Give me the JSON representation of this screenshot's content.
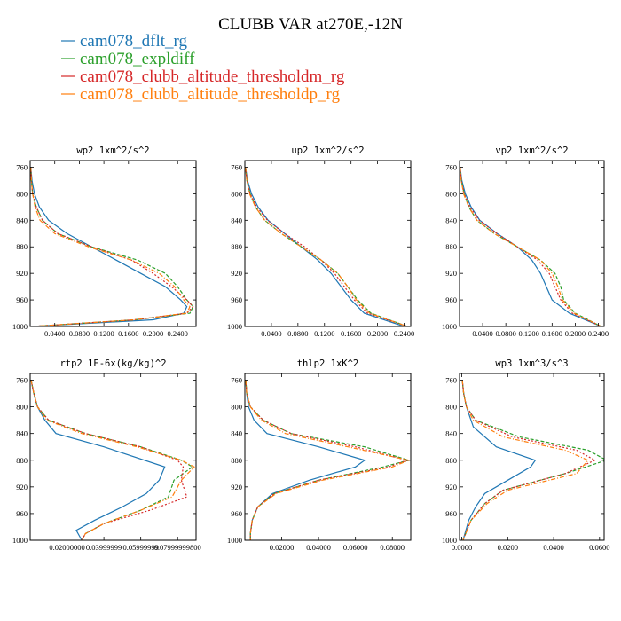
{
  "title": "CLUBB VAR at270E,-12N",
  "legend": [
    {
      "label": "cam078_dflt_rg",
      "color": "#1f77b4"
    },
    {
      "label": "cam078_expldiff",
      "color": "#2ca02c"
    },
    {
      "label": "cam078_clubb_altitude_thresholdm_rg",
      "color": "#d62728"
    },
    {
      "label": "cam078_clubb_altitude_thresholdp_rg",
      "color": "#ff7f0e"
    }
  ],
  "chart_data": [
    {
      "type": "line",
      "title": "wp2  1xm^2/s^2",
      "ylim": [
        1000,
        750
      ],
      "xlim": [
        0,
        0.27
      ],
      "yticks": [
        760,
        800,
        840,
        880,
        920,
        960,
        1000
      ],
      "xticks": [
        0.04,
        0.08,
        0.12,
        0.16,
        0.2,
        0.24
      ],
      "xtick_labels": [
        "0.0400",
        "0.0800",
        "0.1200",
        "0.1600",
        "0.2000",
        "0.2400"
      ],
      "series": [
        {
          "x": [
            0.001,
            0.003,
            0.007,
            0.015,
            0.03,
            0.06,
            0.1,
            0.14,
            0.18,
            0.22,
            0.245,
            0.255,
            0.25,
            0.2,
            0.003
          ],
          "y": [
            760,
            780,
            800,
            820,
            840,
            860,
            880,
            900,
            920,
            940,
            960,
            970,
            980,
            990,
            1000
          ]
        },
        {
          "x": [
            0.001,
            0.002,
            0.004,
            0.01,
            0.02,
            0.045,
            0.1,
            0.175,
            0.22,
            0.24,
            0.255,
            0.265,
            0.26,
            0.17,
            0.003
          ],
          "y": [
            760,
            780,
            800,
            820,
            840,
            860,
            880,
            900,
            920,
            940,
            960,
            970,
            980,
            990,
            1000
          ]
        },
        {
          "x": [
            0.001,
            0.002,
            0.004,
            0.01,
            0.02,
            0.045,
            0.1,
            0.165,
            0.2,
            0.23,
            0.255,
            0.265,
            0.255,
            0.17,
            0.003
          ],
          "y": [
            760,
            780,
            800,
            820,
            840,
            860,
            880,
            900,
            920,
            940,
            960,
            970,
            980,
            990,
            1000
          ]
        },
        {
          "x": [
            0.001,
            0.002,
            0.004,
            0.008,
            0.016,
            0.04,
            0.095,
            0.165,
            0.21,
            0.235,
            0.25,
            0.26,
            0.255,
            0.17,
            0.003
          ],
          "y": [
            760,
            780,
            800,
            820,
            840,
            860,
            880,
            900,
            920,
            940,
            960,
            970,
            980,
            990,
            1000
          ]
        }
      ]
    },
    {
      "type": "line",
      "title": "up2  1xm^2/s^2",
      "ylim": [
        1000,
        750
      ],
      "xlim": [
        0,
        0.25
      ],
      "yticks": [
        760,
        800,
        840,
        880,
        920,
        960,
        1000
      ],
      "xticks": [
        0.04,
        0.08,
        0.12,
        0.16,
        0.2,
        0.24
      ],
      "xtick_labels": [
        "0.0400",
        "0.0800",
        "0.1200",
        "0.1600",
        "0.2000",
        "0.2400"
      ],
      "series": [
        {
          "x": [
            0.001,
            0.004,
            0.01,
            0.02,
            0.035,
            0.06,
            0.085,
            0.11,
            0.13,
            0.145,
            0.16,
            0.18,
            0.24
          ],
          "y": [
            760,
            780,
            800,
            820,
            840,
            860,
            880,
            900,
            920,
            940,
            960,
            980,
            1000
          ]
        },
        {
          "x": [
            0.001,
            0.003,
            0.008,
            0.016,
            0.03,
            0.055,
            0.085,
            0.115,
            0.14,
            0.155,
            0.17,
            0.19,
            0.245
          ],
          "y": [
            760,
            780,
            800,
            820,
            840,
            860,
            880,
            900,
            920,
            940,
            960,
            980,
            1000
          ]
        },
        {
          "x": [
            0.001,
            0.003,
            0.008,
            0.018,
            0.034,
            0.06,
            0.09,
            0.115,
            0.135,
            0.15,
            0.165,
            0.185,
            0.245
          ],
          "y": [
            760,
            780,
            800,
            820,
            840,
            860,
            880,
            900,
            920,
            940,
            960,
            980,
            1000
          ]
        },
        {
          "x": [
            0.001,
            0.003,
            0.007,
            0.016,
            0.03,
            0.055,
            0.085,
            0.115,
            0.14,
            0.155,
            0.168,
            0.188,
            0.245
          ],
          "y": [
            760,
            780,
            800,
            820,
            840,
            860,
            880,
            900,
            920,
            940,
            960,
            980,
            1000
          ]
        }
      ]
    },
    {
      "type": "line",
      "title": "vp2  1xm^2/s^2",
      "ylim": [
        1000,
        750
      ],
      "xlim": [
        0,
        0.25
      ],
      "yticks": [
        760,
        800,
        840,
        880,
        920,
        960,
        1000
      ],
      "xticks": [
        0.04,
        0.08,
        0.12,
        0.16,
        0.2,
        0.24
      ],
      "xtick_labels": [
        "0.0400",
        "0.0800",
        "0.1200",
        "0.1600",
        "0.2000",
        "0.2400"
      ],
      "series": [
        {
          "x": [
            0.001,
            0.004,
            0.01,
            0.02,
            0.035,
            0.065,
            0.1,
            0.125,
            0.14,
            0.15,
            0.16,
            0.19,
            0.245
          ],
          "y": [
            760,
            780,
            800,
            820,
            840,
            860,
            880,
            900,
            920,
            940,
            960,
            980,
            1000
          ]
        },
        {
          "x": [
            0.001,
            0.003,
            0.008,
            0.016,
            0.03,
            0.06,
            0.1,
            0.14,
            0.165,
            0.175,
            0.18,
            0.2,
            0.245
          ],
          "y": [
            760,
            780,
            800,
            820,
            840,
            860,
            880,
            900,
            920,
            940,
            960,
            980,
            1000
          ]
        },
        {
          "x": [
            0.001,
            0.003,
            0.008,
            0.018,
            0.034,
            0.065,
            0.1,
            0.135,
            0.155,
            0.165,
            0.175,
            0.195,
            0.245
          ],
          "y": [
            760,
            780,
            800,
            820,
            840,
            860,
            880,
            900,
            920,
            940,
            960,
            980,
            1000
          ]
        },
        {
          "x": [
            0.001,
            0.003,
            0.007,
            0.016,
            0.03,
            0.06,
            0.1,
            0.14,
            0.16,
            0.17,
            0.178,
            0.198,
            0.245
          ],
          "y": [
            760,
            780,
            800,
            820,
            840,
            860,
            880,
            900,
            920,
            940,
            960,
            980,
            1000
          ]
        }
      ]
    },
    {
      "type": "line",
      "title": "rtp2  1E-6x(kg/kg)^2",
      "ylim": [
        1000,
        750
      ],
      "xlim": [
        0,
        0.09
      ],
      "yticks": [
        760,
        800,
        840,
        880,
        920,
        960,
        1000
      ],
      "xticks": [
        0.02,
        0.04,
        0.06,
        0.08
      ],
      "xtick_labels": [
        "0.02000000",
        "0.03999999",
        "0.05999999",
        "0.07999999800"
      ],
      "series": [
        {
          "x": [
            0.0005,
            0.002,
            0.004,
            0.008,
            0.014,
            0.04,
            0.073,
            0.07,
            0.063,
            0.05,
            0.035,
            0.025,
            0.027,
            0.028
          ],
          "y": [
            760,
            780,
            800,
            820,
            840,
            860,
            890,
            910,
            930,
            950,
            970,
            985,
            995,
            1000
          ]
        },
        {
          "x": [
            0.0005,
            0.002,
            0.004,
            0.01,
            0.03,
            0.06,
            0.082,
            0.088,
            0.078,
            0.075,
            0.06,
            0.04,
            0.03,
            0.028
          ],
          "y": [
            760,
            780,
            800,
            820,
            840,
            860,
            880,
            890,
            910,
            935,
            955,
            975,
            990,
            1000
          ]
        },
        {
          "x": [
            0.0005,
            0.002,
            0.004,
            0.01,
            0.03,
            0.06,
            0.08,
            0.083,
            0.082,
            0.085,
            0.065,
            0.04,
            0.03,
            0.028
          ],
          "y": [
            760,
            780,
            800,
            820,
            840,
            860,
            880,
            890,
            910,
            935,
            955,
            975,
            990,
            1000
          ]
        },
        {
          "x": [
            0.0005,
            0.002,
            0.004,
            0.009,
            0.028,
            0.058,
            0.082,
            0.089,
            0.082,
            0.077,
            0.06,
            0.04,
            0.03,
            0.028
          ],
          "y": [
            760,
            780,
            800,
            820,
            840,
            860,
            880,
            890,
            910,
            935,
            955,
            975,
            990,
            1000
          ]
        }
      ]
    },
    {
      "type": "line",
      "title": "thlp2  1xK^2",
      "ylim": [
        1000,
        750
      ],
      "xlim": [
        0,
        0.09
      ],
      "yticks": [
        760,
        800,
        840,
        880,
        920,
        960,
        1000
      ],
      "xticks": [
        0.02,
        0.04,
        0.06,
        0.08
      ],
      "xtick_labels": [
        "0.02000",
        "0.04000",
        "0.06000",
        "0.08000"
      ],
      "series": [
        {
          "x": [
            0.0005,
            0.001,
            0.002,
            0.005,
            0.012,
            0.04,
            0.065,
            0.06,
            0.035,
            0.015,
            0.007,
            0.004,
            0.003,
            0.003
          ],
          "y": [
            760,
            780,
            800,
            820,
            840,
            860,
            880,
            890,
            910,
            930,
            950,
            970,
            990,
            1000
          ]
        },
        {
          "x": [
            0.0005,
            0.001,
            0.003,
            0.01,
            0.025,
            0.065,
            0.089,
            0.075,
            0.04,
            0.016,
            0.007,
            0.004,
            0.003,
            0.003
          ],
          "y": [
            760,
            780,
            800,
            820,
            840,
            860,
            880,
            890,
            910,
            930,
            950,
            970,
            990,
            1000
          ]
        },
        {
          "x": [
            0.0005,
            0.001,
            0.003,
            0.01,
            0.025,
            0.06,
            0.088,
            0.078,
            0.04,
            0.016,
            0.007,
            0.004,
            0.003,
            0.003
          ],
          "y": [
            760,
            780,
            800,
            820,
            840,
            860,
            880,
            890,
            910,
            930,
            950,
            970,
            990,
            1000
          ]
        },
        {
          "x": [
            0.0005,
            0.001,
            0.003,
            0.009,
            0.022,
            0.056,
            0.089,
            0.08,
            0.042,
            0.017,
            0.007,
            0.004,
            0.003,
            0.003
          ],
          "y": [
            760,
            780,
            800,
            820,
            840,
            860,
            880,
            890,
            910,
            930,
            950,
            970,
            990,
            1000
          ]
        }
      ]
    },
    {
      "type": "line",
      "title": "wp3  1xm^3/s^3",
      "ylim": [
        1000,
        750
      ],
      "xlim": [
        -0.001,
        0.062
      ],
      "yticks": [
        760,
        800,
        840,
        880,
        920,
        960,
        1000
      ],
      "xticks": [
        0.0,
        0.02,
        0.04,
        0.06
      ],
      "xtick_labels": [
        "0.0000",
        "0.0200",
        "0.0400",
        "0.0600"
      ],
      "series": [
        {
          "x": [
            0.0002,
            0.0008,
            0.002,
            0.005,
            0.015,
            0.032,
            0.03,
            0.02,
            0.01,
            0.006,
            0.003,
            0.0005
          ],
          "y": [
            760,
            780,
            800,
            830,
            860,
            880,
            890,
            910,
            930,
            950,
            970,
            1000
          ]
        },
        {
          "x": [
            0.0002,
            0.0008,
            0.002,
            0.006,
            0.025,
            0.055,
            0.063,
            0.045,
            0.018,
            0.01,
            0.004,
            0.0005
          ],
          "y": [
            760,
            780,
            800,
            820,
            845,
            865,
            880,
            900,
            925,
            945,
            970,
            1000
          ]
        },
        {
          "x": [
            0.0002,
            0.0008,
            0.002,
            0.006,
            0.022,
            0.05,
            0.058,
            0.045,
            0.018,
            0.01,
            0.004,
            0.0005
          ],
          "y": [
            760,
            780,
            800,
            820,
            845,
            865,
            880,
            900,
            925,
            945,
            970,
            1000
          ]
        },
        {
          "x": [
            0.0002,
            0.0008,
            0.002,
            0.005,
            0.018,
            0.045,
            0.055,
            0.05,
            0.02,
            0.011,
            0.004,
            0.0005
          ],
          "y": [
            760,
            780,
            800,
            820,
            845,
            865,
            880,
            900,
            925,
            945,
            970,
            1000
          ]
        }
      ]
    }
  ]
}
